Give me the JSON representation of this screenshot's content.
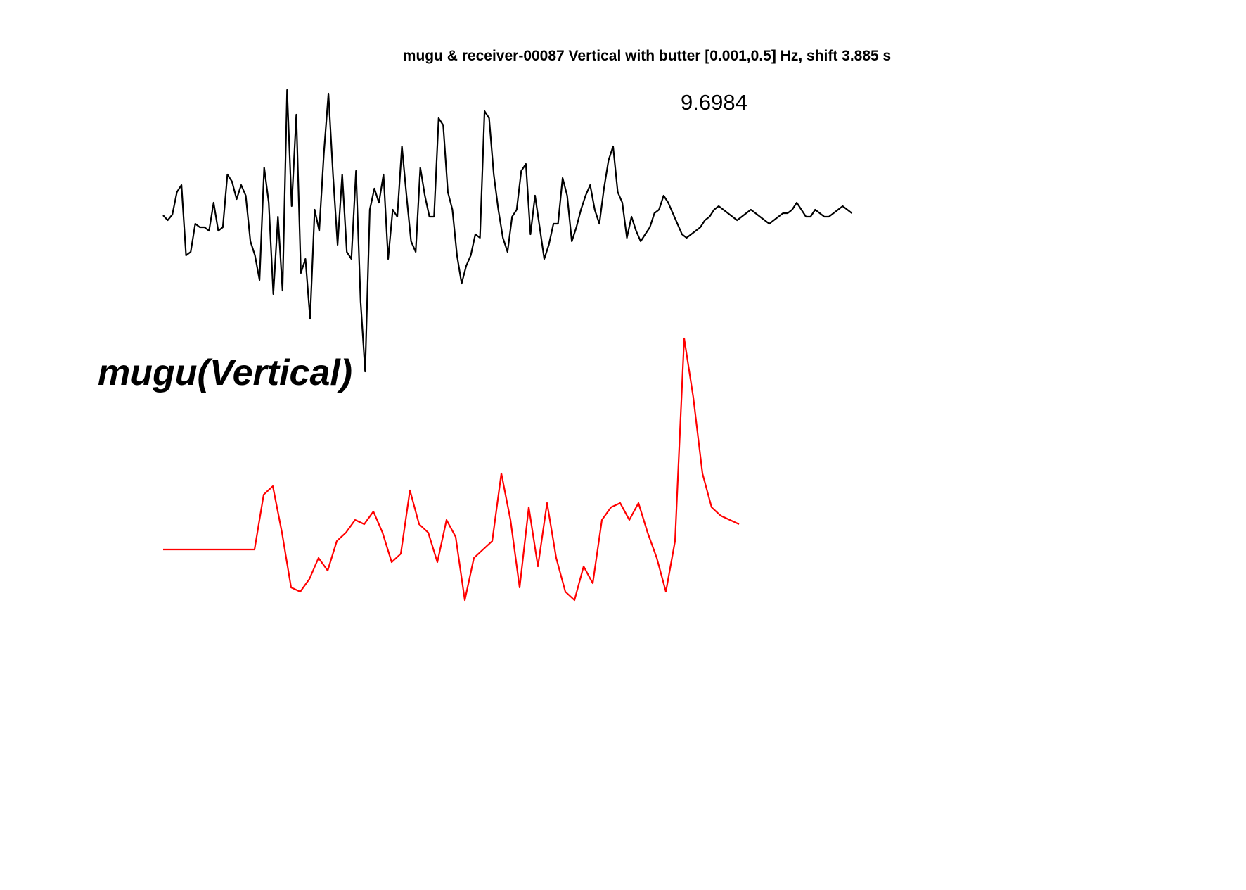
{
  "chart_data": {
    "type": "line",
    "title": "mugu & receiver-00087 Vertical with butter [0.001,0.5] Hz, shift 3.885 s",
    "annotation": "9.6984",
    "station_label": "mugu(Vertical)",
    "axes_visible": false,
    "grid": false,
    "series": [
      {
        "color": "#000000",
        "t": [
          0,
          0.5,
          1,
          1.5,
          2,
          2.5,
          3,
          3.5,
          4,
          4.5,
          5,
          5.5,
          6,
          6.5,
          7,
          7.5,
          8,
          8.5,
          9,
          9.5,
          10,
          10.5,
          11,
          11.5,
          12,
          12.5,
          13,
          13.5,
          14,
          14.5,
          15,
          15.5,
          16,
          16.5,
          17,
          17.5,
          18,
          18.5,
          19,
          19.5,
          20,
          20.5,
          21,
          21.5,
          22,
          22.5,
          23,
          23.5,
          24,
          24.5,
          25,
          25.5,
          26,
          26.5,
          27,
          27.5,
          28,
          28.5,
          29,
          29.5,
          30,
          30.5,
          31,
          31.5,
          32,
          32.5,
          33,
          33.5,
          34,
          34.5,
          35,
          35.5,
          36,
          36.5,
          37,
          37.5,
          38,
          38.5,
          39,
          39.5,
          40,
          40.5,
          41,
          41.5,
          42,
          42.5,
          43,
          43.5,
          44,
          44.5,
          45,
          45.5,
          46,
          46.5,
          47,
          47.5,
          48,
          48.5,
          49,
          49.5,
          50,
          50.5,
          51,
          51.5,
          52,
          52.5,
          53,
          53.5,
          54,
          54.5,
          55,
          55.5,
          56,
          56.5,
          57,
          57.5,
          58,
          58.5,
          59,
          59.5,
          60,
          60.5,
          61,
          61.5,
          62,
          62.5,
          63,
          63.5,
          64,
          64.5,
          65,
          65.5,
          66,
          66.5,
          67,
          67.5,
          68,
          68.5,
          69,
          69.5,
          70,
          70.5,
          71,
          71.5,
          72,
          72.5,
          73,
          73.5,
          74,
          74.5,
          75
        ],
        "values": [
          0.02,
          -0.05,
          0.03,
          0.35,
          0.45,
          -0.55,
          -0.5,
          -0.1,
          -0.15,
          -0.15,
          -0.2,
          0.2,
          -0.2,
          -0.15,
          0.6,
          0.5,
          0.25,
          0.45,
          0.3,
          -0.35,
          -0.55,
          -0.9,
          0.7,
          0.2,
          -1.1,
          0,
          -1.05,
          1.8,
          0.15,
          1.45,
          -0.8,
          -0.6,
          -1.45,
          0.1,
          -0.2,
          0.9,
          1.75,
          0.6,
          -0.4,
          0.6,
          -0.5,
          -0.6,
          0.65,
          -1.2,
          -2.2,
          0.1,
          0.4,
          0.2,
          0.6,
          -0.6,
          0.1,
          0,
          1,
          0.3,
          -0.35,
          -0.5,
          0.7,
          0.3,
          0,
          0,
          1.4,
          1.3,
          0.35,
          0.1,
          -0.55,
          -0.95,
          -0.7,
          -0.55,
          -0.25,
          -0.3,
          1.5,
          1.4,
          0.6,
          0.1,
          -0.3,
          -0.5,
          0,
          0.1,
          0.65,
          0.75,
          -0.25,
          0.3,
          -0.15,
          -0.6,
          -0.4,
          -0.1,
          -0.1,
          0.55,
          0.3,
          -0.35,
          -0.15,
          0.1,
          0.3,
          0.45,
          0.1,
          -0.1,
          0.4,
          0.8,
          1,
          0.35,
          0.2,
          -0.3,
          0,
          -0.2,
          -0.35,
          -0.25,
          -0.15,
          0.05,
          0.1,
          0.3,
          0.2,
          0.05,
          -0.1,
          -0.25,
          -0.3,
          -0.25,
          -0.2,
          -0.15,
          -0.05,
          0,
          0.1,
          0.15,
          0.1,
          0.05,
          0,
          -0.05,
          0,
          0.05,
          0.1,
          0.05,
          0,
          -0.05,
          -0.1,
          -0.05,
          0,
          0.05,
          0.05,
          0.1,
          0.2,
          0.1,
          0,
          0,
          0.1,
          0.05,
          0,
          0,
          0.05,
          0.1,
          0.15,
          0.1,
          0.05
        ]
      },
      {
        "color": "#ff0000",
        "t": [
          0,
          1,
          2,
          3,
          4,
          5,
          6,
          7,
          8,
          9,
          10,
          11,
          12,
          13,
          14,
          15,
          16,
          17,
          18,
          19,
          20,
          21,
          22,
          23,
          24,
          25,
          26,
          27,
          28,
          29,
          30,
          31,
          32,
          33,
          34,
          35,
          36,
          37,
          38,
          39,
          40,
          41,
          42,
          43,
          44,
          45,
          46,
          47,
          48,
          49,
          50,
          51,
          52,
          53,
          54,
          55,
          56,
          57,
          58,
          59,
          60,
          61,
          62,
          63
        ],
        "values": [
          0,
          0,
          0,
          0,
          0,
          0,
          0,
          0,
          0,
          0,
          0,
          0.65,
          0.75,
          0.2,
          -0.45,
          -0.5,
          -0.35,
          -0.1,
          -0.25,
          0.1,
          0.2,
          0.35,
          0.3,
          0.45,
          0.2,
          -0.15,
          -0.05,
          0.7,
          0.3,
          0.2,
          -0.15,
          0.35,
          0.15,
          -0.6,
          -0.1,
          0,
          0.1,
          0.9,
          0.35,
          -0.45,
          0.5,
          -0.2,
          0.55,
          -0.1,
          -0.5,
          -0.6,
          -0.2,
          -0.4,
          0.35,
          0.5,
          0.55,
          0.35,
          0.55,
          0.2,
          -0.1,
          -0.5,
          0.1,
          2.5,
          1.8,
          0.9,
          0.5,
          0.4,
          0.35,
          0.3
        ]
      }
    ]
  }
}
